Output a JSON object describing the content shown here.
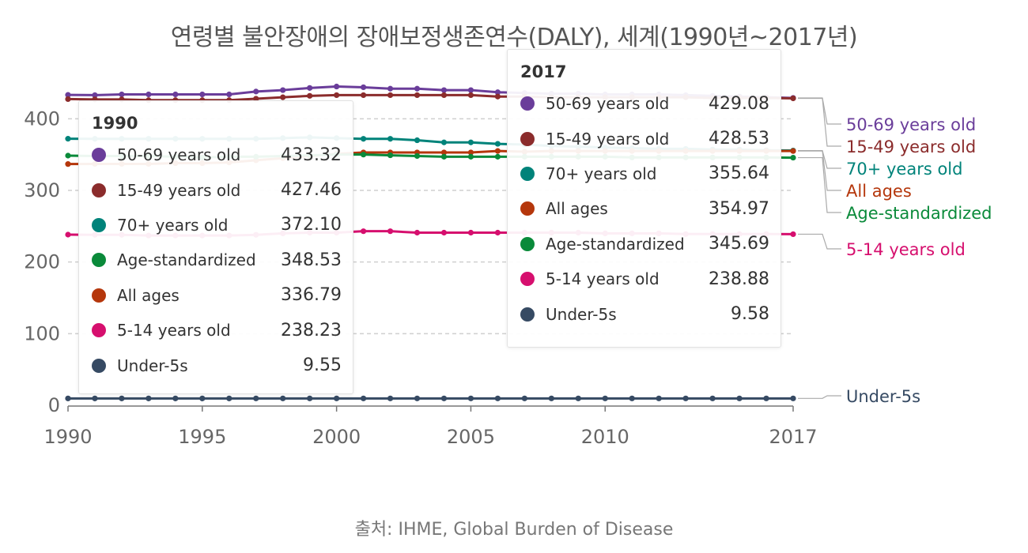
{
  "title": "연령별 불안장애의 장애보정생존연수(DALY), 세계(1990년~2017년)",
  "source": "출처: IHME, Global Burden of Disease",
  "chart_data": {
    "type": "line",
    "title": "연령별 불안장애의 장애보정생존연수(DALY), 세계(1990년~2017년)",
    "xlabel": "",
    "ylabel": "",
    "xlim": [
      1990,
      2017
    ],
    "ylim": [
      0,
      450
    ],
    "x_ticks": [
      "1990",
      "1995",
      "2000",
      "2005",
      "2010",
      "2017"
    ],
    "y_ticks": [
      "0",
      "100",
      "200",
      "300",
      "400"
    ],
    "grid": true,
    "x": [
      1990,
      1991,
      1992,
      1993,
      1994,
      1995,
      1996,
      1997,
      1998,
      1999,
      2000,
      2001,
      2002,
      2003,
      2004,
      2005,
      2006,
      2007,
      2008,
      2009,
      2010,
      2011,
      2012,
      2013,
      2014,
      2015,
      2016,
      2017
    ],
    "series": [
      {
        "name": "50-69 years old",
        "color": "#6a3d9a",
        "values": [
          433.32,
          433,
          434,
          434,
          434,
          434,
          434,
          438,
          440,
          443,
          445,
          444,
          442,
          442,
          440,
          440,
          437,
          436,
          435,
          435,
          434,
          434,
          434,
          433,
          432,
          431,
          430,
          429.08
        ]
      },
      {
        "name": "15-49 years old",
        "color": "#8b2c2c",
        "values": [
          427.46,
          427,
          427,
          426,
          426,
          426,
          426,
          428,
          430,
          432,
          433,
          433,
          433,
          433,
          433,
          433,
          431,
          431,
          430,
          430,
          430,
          430,
          430,
          430,
          429,
          429,
          429,
          428.53
        ]
      },
      {
        "name": "70+ years old",
        "color": "#00837a",
        "values": [
          372.1,
          372,
          372,
          372,
          372,
          372,
          372,
          372,
          373,
          374,
          373,
          372,
          372,
          370,
          367,
          367,
          365,
          364,
          362,
          361,
          360,
          359,
          358,
          358,
          357,
          357,
          356,
          355.64
        ]
      },
      {
        "name": "All ages",
        "color": "#b5370c",
        "values": [
          336.79,
          337,
          337,
          337,
          338,
          338,
          339,
          342,
          345,
          348,
          351,
          353,
          353,
          353,
          353,
          353,
          355,
          354,
          355,
          355,
          355,
          355,
          355,
          355,
          355,
          355,
          355,
          354.97
        ]
      },
      {
        "name": "Age-standardized",
        "color": "#0a8a3a",
        "values": [
          348.53,
          348,
          348,
          348,
          347,
          346,
          347,
          347,
          348,
          349,
          350,
          350,
          349,
          348,
          347,
          347,
          347,
          347,
          347,
          347,
          347,
          346,
          346,
          346,
          346,
          346,
          346,
          345.69
        ]
      },
      {
        "name": "5-14 years old",
        "color": "#d60f6e",
        "values": [
          238.23,
          238,
          238,
          237,
          237,
          237,
          237,
          238,
          240,
          241,
          241,
          243,
          243,
          241,
          241,
          241,
          241,
          241,
          241,
          241,
          240,
          240,
          240,
          239,
          239,
          239,
          239,
          238.88
        ]
      },
      {
        "name": "Under-5s",
        "color": "#364a63",
        "values": [
          9.55,
          9.55,
          9.55,
          9.55,
          9.55,
          9.55,
          9.55,
          9.56,
          9.56,
          9.56,
          9.57,
          9.57,
          9.57,
          9.57,
          9.57,
          9.57,
          9.57,
          9.57,
          9.58,
          9.58,
          9.58,
          9.58,
          9.58,
          9.58,
          9.58,
          9.58,
          9.58,
          9.58
        ]
      }
    ],
    "end_labels": [
      "50-69 years old",
      "15-49 years old",
      "70+ years old",
      "All ages",
      "Age-standardized",
      "5-14 years old",
      "Under-5s"
    ],
    "tooltips": [
      {
        "year": "1990",
        "rows": [
          {
            "label": "50-69 years old",
            "value": "433.32",
            "color": "#6a3d9a"
          },
          {
            "label": "15-49 years old",
            "value": "427.46",
            "color": "#8b2c2c"
          },
          {
            "label": "70+ years old",
            "value": "372.10",
            "color": "#00837a"
          },
          {
            "label": "Age-standardized",
            "value": "348.53",
            "color": "#0a8a3a"
          },
          {
            "label": "All ages",
            "value": "336.79",
            "color": "#b5370c"
          },
          {
            "label": "5-14 years old",
            "value": "238.23",
            "color": "#d60f6e"
          },
          {
            "label": "Under-5s",
            "value": "9.55",
            "color": "#364a63"
          }
        ]
      },
      {
        "year": "2017",
        "rows": [
          {
            "label": "50-69 years old",
            "value": "429.08",
            "color": "#6a3d9a"
          },
          {
            "label": "15-49 years old",
            "value": "428.53",
            "color": "#8b2c2c"
          },
          {
            "label": "70+ years old",
            "value": "355.64",
            "color": "#00837a"
          },
          {
            "label": "All ages",
            "value": "354.97",
            "color": "#b5370c"
          },
          {
            "label": "Age-standardized",
            "value": "345.69",
            "color": "#0a8a3a"
          },
          {
            "label": "5-14 years old",
            "value": "238.88",
            "color": "#d60f6e"
          },
          {
            "label": "Under-5s",
            "value": "9.58",
            "color": "#364a63"
          }
        ]
      }
    ]
  }
}
